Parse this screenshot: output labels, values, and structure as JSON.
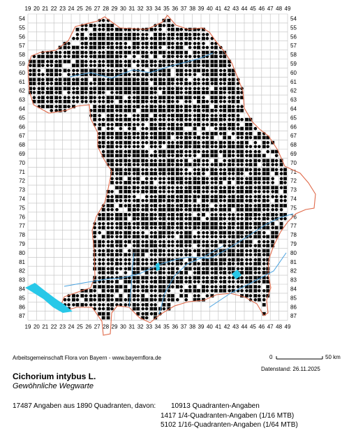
{
  "map": {
    "x_labels": [
      "19",
      "20",
      "21",
      "22",
      "23",
      "24",
      "25",
      "26",
      "27",
      "28",
      "29",
      "30",
      "31",
      "32",
      "33",
      "34",
      "35",
      "36",
      "37",
      "38",
      "39",
      "40",
      "41",
      "42",
      "43",
      "44",
      "45",
      "46",
      "47",
      "48",
      "49"
    ],
    "y_labels": [
      "54",
      "55",
      "56",
      "57",
      "58",
      "59",
      "60",
      "61",
      "62",
      "63",
      "64",
      "65",
      "66",
      "67",
      "68",
      "69",
      "70",
      "71",
      "72",
      "73",
      "74",
      "75",
      "76",
      "77",
      "78",
      "79",
      "80",
      "81",
      "82",
      "83",
      "84",
      "85",
      "86",
      "87"
    ],
    "border_color": "#e06a4a",
    "river_color": "#4aa3e0",
    "lake_color": "#28c8e8",
    "dot_color": "#000000",
    "grid_color": "#bfbfbf"
  },
  "credit": "Arbeitsgemeinschaft Flora von Bayern - www.bayernflora.de",
  "scale": {
    "start": "0",
    "end": "50 km"
  },
  "date_line": "Datenstand: 26.11.2025",
  "species": {
    "name": "Cichorium intybus L.",
    "common_name": "Gewöhnliche Wegwarte"
  },
  "stats": {
    "summary": "17487 Angaben aus 1890 Quadranten, davon:",
    "line1": "10913 Quadranten-Angaben",
    "line2": "1417 1/4-Quadranten-Angaben (1/16 MTB)",
    "line3": "5102 1/16-Quadranten-Angaben (1/64 MTB)"
  }
}
